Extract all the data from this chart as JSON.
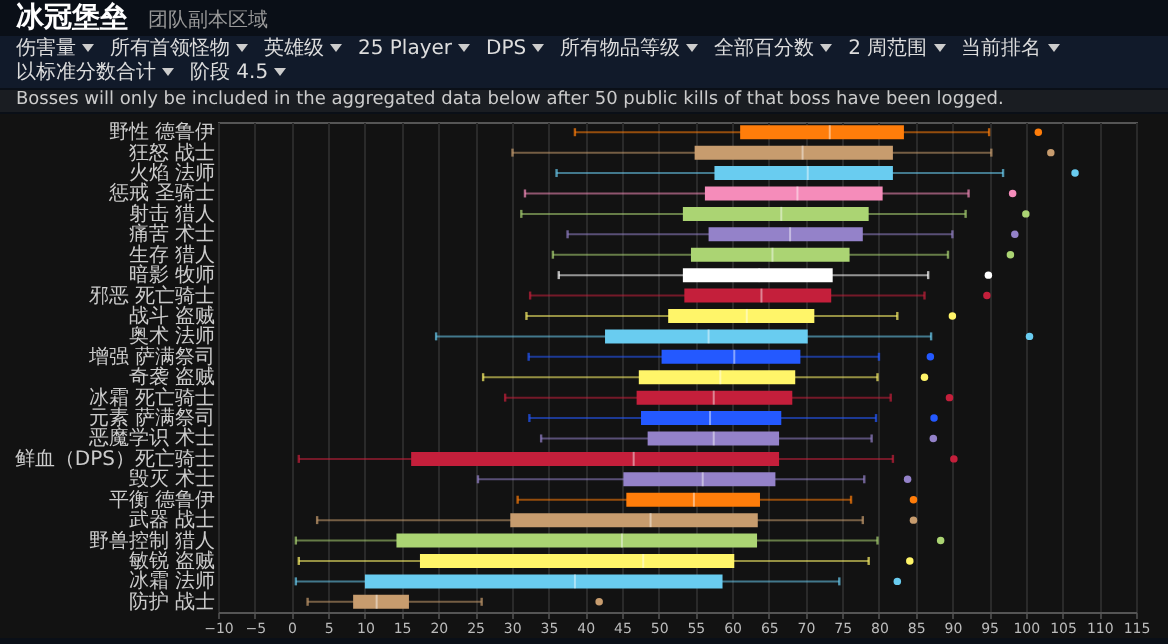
{
  "chart_data": {
    "type": "box",
    "title": "冰冠堡垒",
    "subtitle": "团队副本区域",
    "annotations": [
      "伤害量",
      "所有首领怪物",
      "英雄级",
      "25 Player",
      "DPS",
      "所有物品等级",
      "全部百分数",
      "2 周范围",
      "当前排名",
      "以标准分数合计",
      "阶段 4.5",
      "Bosses will only be included in the aggregated data below after 50 public kills of that boss have been logged."
    ],
    "orientation": "horizontal",
    "categories": [
      "野性 德鲁伊",
      "狂怒 战士",
      "火焰 法师",
      "惩戒 圣骑士",
      "射击 猎人",
      "痛苦 术士",
      "生存 猎人",
      "暗影 牧师",
      "邪恶 死亡骑士",
      "战斗 盗贼",
      "奥术 法师",
      "增强 萨满祭司",
      "奇袭 盗贼",
      "冰霜 死亡骑士",
      "元素 萨满祭司",
      "恶魔学识 术士",
      "鲜血（DPS）死亡骑士",
      "毁灭 术士",
      "平衡 德鲁伊",
      "武器 战士",
      "野兽控制 猎人",
      "敏锐 盗贼",
      "冰霜 法师",
      "防护 战士"
    ],
    "colors": [
      "#ff7d0a",
      "#c79c6e",
      "#69ccf0",
      "#f58cba",
      "#abd473",
      "#9482c9",
      "#abd473",
      "#ffffff",
      "#c41f3b",
      "#fff569",
      "#69ccf0",
      "#2459ff",
      "#fff569",
      "#c41f3b",
      "#2459ff",
      "#9482c9",
      "#c41f3b",
      "#9482c9",
      "#ff7d0a",
      "#c79c6e",
      "#abd473",
      "#fff569",
      "#69ccf0",
      "#c79c6e"
    ],
    "boxes": [
      {
        "low": 38.6,
        "q1": 61.1,
        "median": 73.3,
        "q3": 83.4,
        "high": 95,
        "outliers": [
          101.7
        ]
      },
      {
        "low": 30.1,
        "q1": 54.9,
        "median": 69.6,
        "q3": 81.9,
        "high": 95.3,
        "outliers": [
          103.4
        ]
      },
      {
        "low": 36.1,
        "q1": 57.6,
        "median": 70.3,
        "q3": 81.9,
        "high": 96.9,
        "outliers": [
          106.7
        ]
      },
      {
        "low": 31.8,
        "q1": 56.3,
        "median": 68.9,
        "q3": 80.5,
        "high": 92.2,
        "outliers": [
          98.2
        ]
      },
      {
        "low": 31.3,
        "q1": 53.3,
        "median": 66.7,
        "q3": 78.6,
        "high": 91.8,
        "outliers": [
          100
        ]
      },
      {
        "low": 37.6,
        "q1": 56.8,
        "median": 67.9,
        "q3": 77.8,
        "high": 90,
        "outliers": [
          98.5
        ]
      },
      {
        "low": 35.6,
        "q1": 54.4,
        "median": 65.5,
        "q3": 76,
        "high": 89.4,
        "outliers": [
          97.9
        ]
      },
      {
        "low": 36.4,
        "q1": 53.3,
        "median": 63.7,
        "q3": 73.7,
        "high": 86.7,
        "outliers": [
          94.9
        ]
      },
      {
        "low": 32.5,
        "q1": 53.5,
        "median": 64,
        "q3": 73.5,
        "high": 86.2,
        "outliers": [
          94.7
        ]
      },
      {
        "low": 32,
        "q1": 51.3,
        "median": 62,
        "q3": 71.2,
        "high": 82.5,
        "outliers": [
          90
        ]
      },
      {
        "low": 19.7,
        "q1": 42.7,
        "median": 56.8,
        "q3": 70.3,
        "high": 87.1,
        "outliers": [
          100.5
        ]
      },
      {
        "low": 32.3,
        "q1": 50.4,
        "median": 60.3,
        "q3": 69.3,
        "high": 80,
        "outliers": [
          87
        ]
      },
      {
        "low": 26.1,
        "q1": 47.3,
        "median": 58.4,
        "q3": 68.6,
        "high": 79.8,
        "outliers": [
          86.2
        ]
      },
      {
        "low": 29.1,
        "q1": 47,
        "median": 57.5,
        "q3": 68.2,
        "high": 81.6,
        "outliers": [
          89.6
        ]
      },
      {
        "low": 32.4,
        "q1": 47.6,
        "median": 57,
        "q3": 66.7,
        "high": 79.6,
        "outliers": [
          87.5
        ]
      },
      {
        "low": 34,
        "q1": 48.5,
        "median": 57.5,
        "q3": 66.4,
        "high": 79,
        "outliers": [
          87.4
        ]
      },
      {
        "low": 1,
        "q1": 16.3,
        "median": 46.6,
        "q3": 66.4,
        "high": 81.9,
        "outliers": [
          90.2
        ]
      },
      {
        "low": 25.4,
        "q1": 45.2,
        "median": 56,
        "q3": 65.9,
        "high": 78,
        "outliers": [
          83.9
        ]
      },
      {
        "low": 30.8,
        "q1": 45.6,
        "median": 54.8,
        "q3": 63.8,
        "high": 76.2,
        "outliers": [
          84.7
        ]
      },
      {
        "low": 3.5,
        "q1": 29.8,
        "median": 48.9,
        "q3": 63.5,
        "high": 77.8,
        "outliers": [
          84.7
        ]
      },
      {
        "low": 0.6,
        "q1": 14.3,
        "median": 45,
        "q3": 63.4,
        "high": 79.8,
        "outliers": [
          88.4
        ]
      },
      {
        "low": 1,
        "q1": 17.5,
        "median": 47.9,
        "q3": 60.3,
        "high": 78.6,
        "outliers": [
          84.2
        ]
      },
      {
        "low": 0.6,
        "q1": 10,
        "median": 38.6,
        "q3": 58.7,
        "high": 74.6,
        "outliers": [
          82.5
        ]
      },
      {
        "low": 2.2,
        "q1": 8.4,
        "median": 11.6,
        "q3": 16,
        "high": 25.9,
        "outliers": [
          41.9
        ]
      }
    ],
    "xlim": [
      -10,
      115
    ],
    "xticks": [
      -10,
      -5,
      0,
      5,
      10,
      15,
      20,
      25,
      30,
      35,
      40,
      45,
      50,
      55,
      60,
      65,
      70,
      75,
      80,
      85,
      90,
      95,
      100,
      105,
      110,
      115
    ],
    "grid": "x"
  }
}
